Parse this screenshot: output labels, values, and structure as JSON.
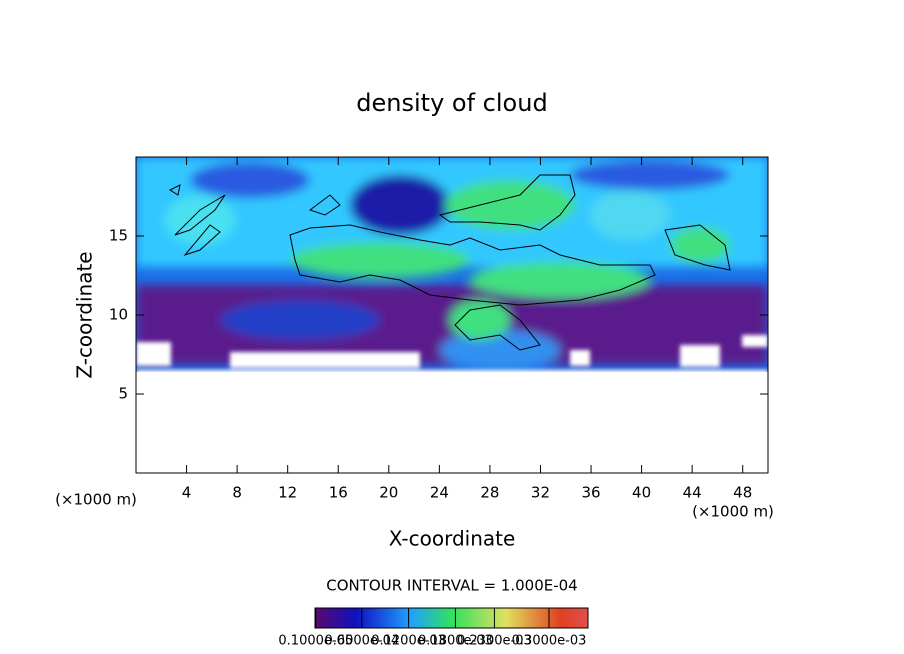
{
  "chart_data": {
    "type": "contour",
    "title": "density of cloud",
    "x_label": "X-coordinate",
    "y_label": "Z-coordinate",
    "x_unit": "(×1000 m)",
    "y_unit": "(×1000 m)",
    "xlim": [
      0,
      50
    ],
    "ylim": [
      0,
      20
    ],
    "xticks": [
      4,
      8,
      12,
      16,
      20,
      24,
      28,
      32,
      36,
      40,
      44,
      48
    ],
    "yticks": [
      5,
      10,
      15
    ],
    "annotation": "CONTOUR INTERVAL = 1.000E-04",
    "colorbar": {
      "lim": [
        0,
        0.00035
      ],
      "ticks": [
        {
          "value": 1e-06,
          "label": "0.1000e-05"
        },
        {
          "value": 6e-05,
          "label": "0.6000e-04"
        },
        {
          "value": 0.00012,
          "label": "0.1200e-03"
        },
        {
          "value": 0.00018,
          "label": "0.1800e-03"
        },
        {
          "value": 0.00023,
          "label": "0.2300e-03"
        },
        {
          "value": 0.0003,
          "label": "0.3000e-03"
        }
      ]
    }
  }
}
